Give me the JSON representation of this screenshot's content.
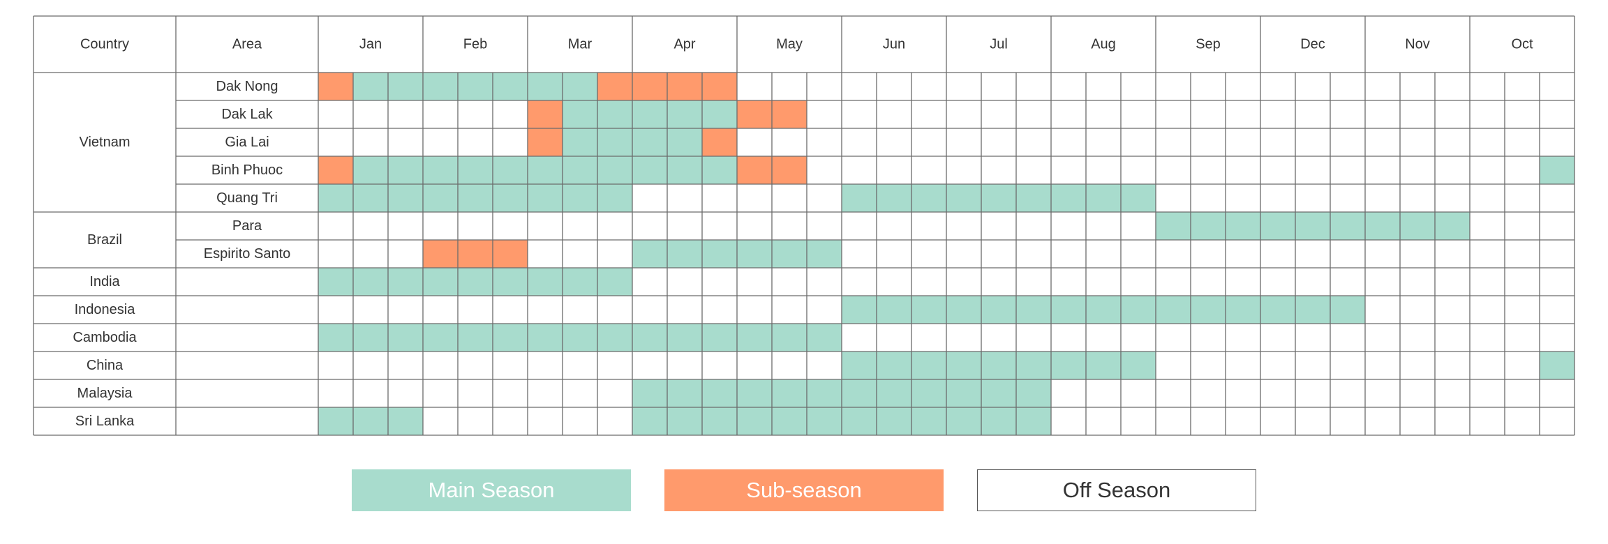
{
  "chart_data": {
    "type": "table",
    "title": "",
    "column_headers": {
      "country": "Country",
      "area": "Area"
    },
    "months": [
      "Jan",
      "Feb",
      "Mar",
      "Apr",
      "May",
      "Jun",
      "Jul",
      "Aug",
      "Sep",
      "Dec",
      "Nov",
      "Oct"
    ],
    "periods_per_month": 3,
    "legend": [
      {
        "key": "main",
        "label": "Main Season",
        "color": "#a8dccd",
        "text_color": "#ffffff"
      },
      {
        "key": "sub",
        "label": "Sub-season",
        "color": "#ff9a6c",
        "text_color": "#ffffff"
      },
      {
        "key": "off",
        "label": "Off Season",
        "color": "#ffffff",
        "text_color": "#333333"
      }
    ],
    "groups": [
      {
        "country": "Vietnam",
        "rows": [
          {
            "area": "Dak Nong",
            "cells": "SMMMMMMMSSSS                        "
          },
          {
            "area": "Dak Lak",
            "cells": "      SMMMMMSS                      "
          },
          {
            "area": "Gia Lai",
            "cells": "      SMMMMS                        "
          },
          {
            "area": "Binh Phuoc",
            "cells": "SMMMMMMMMMMMSS                     M"
          },
          {
            "area": "Quang Tri",
            "cells": "MMMMMMMMM      MMMMMMMMM            "
          }
        ]
      },
      {
        "country": "Brazil",
        "rows": [
          {
            "area": "Para",
            "cells": "                        MMMMMMMMM   "
          },
          {
            "area": "Espirito Santo",
            "cells": "   SSS   MMMMMM                     "
          }
        ]
      },
      {
        "country": "India",
        "rows": [
          {
            "area": "",
            "cells": "MMMMMMMMM                           "
          }
        ]
      },
      {
        "country": "Indonesia",
        "rows": [
          {
            "area": "",
            "cells": "               MMMMMMMMMMMMMMM      "
          }
        ]
      },
      {
        "country": "Cambodia",
        "rows": [
          {
            "area": "",
            "cells": "MMMMMMMMMMMMMMM                     "
          }
        ]
      },
      {
        "country": "China",
        "rows": [
          {
            "area": "",
            "cells": "               MMMMMMMMM           M"
          }
        ]
      },
      {
        "country": "Malaysia",
        "rows": [
          {
            "area": "",
            "cells": "         MMMMMMMMMMMM               "
          }
        ]
      },
      {
        "country": "Sri Lanka",
        "rows": [
          {
            "area": "",
            "cells": "MMM      MMMMMMMMMMMM               "
          }
        ]
      }
    ]
  }
}
